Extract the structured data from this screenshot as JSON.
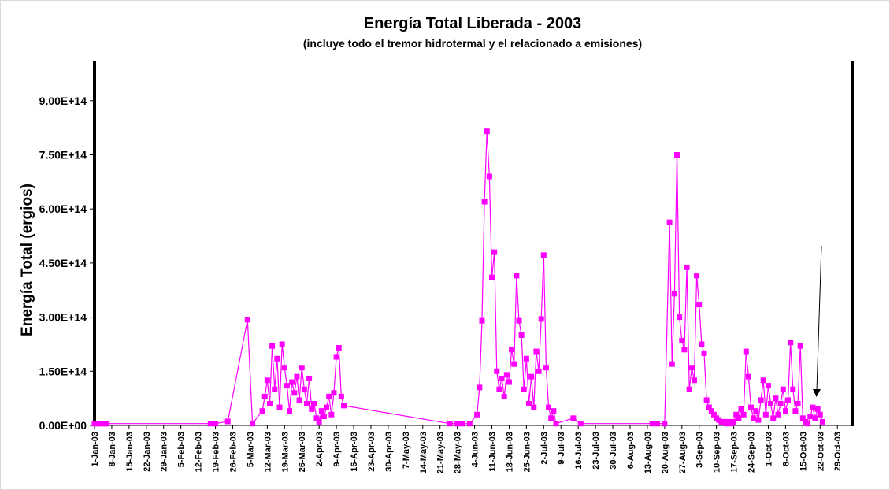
{
  "chart_data": {
    "type": "line",
    "title": "Energía Total Liberada - 2003",
    "subtitle": "(incluye todo el tremor hidrotermal y el relacionado a emisiones)",
    "y_label": "Energía Total (ergios)",
    "color": "#ff00ff",
    "x": [
      "2003-01-01",
      "2003-01-02",
      "2003-01-03",
      "2003-01-04",
      "2003-01-05",
      "2003-01-06",
      "2003-02-17",
      "2003-02-19",
      "2003-02-24",
      "2003-03-04",
      "2003-03-06",
      "2003-03-10",
      "2003-03-11",
      "2003-03-12",
      "2003-03-13",
      "2003-03-14",
      "2003-03-15",
      "2003-03-16",
      "2003-03-17",
      "2003-03-18",
      "2003-03-19",
      "2003-03-20",
      "2003-03-21",
      "2003-03-22",
      "2003-03-23",
      "2003-03-24",
      "2003-03-25",
      "2003-03-26",
      "2003-03-27",
      "2003-03-28",
      "2003-03-29",
      "2003-03-30",
      "2003-03-31",
      "2003-04-01",
      "2003-04-02",
      "2003-04-03",
      "2003-04-04",
      "2003-04-05",
      "2003-04-06",
      "2003-04-07",
      "2003-04-08",
      "2003-04-09",
      "2003-04-10",
      "2003-04-11",
      "2003-04-12",
      "2003-05-25",
      "2003-05-28",
      "2003-05-30",
      "2003-06-02",
      "2003-06-05",
      "2003-06-06",
      "2003-06-07",
      "2003-06-08",
      "2003-06-09",
      "2003-06-10",
      "2003-06-11",
      "2003-06-12",
      "2003-06-13",
      "2003-06-14",
      "2003-06-15",
      "2003-06-16",
      "2003-06-17",
      "2003-06-18",
      "2003-06-19",
      "2003-06-20",
      "2003-06-21",
      "2003-06-22",
      "2003-06-23",
      "2003-06-24",
      "2003-06-25",
      "2003-06-26",
      "2003-06-27",
      "2003-06-28",
      "2003-06-29",
      "2003-06-30",
      "2003-07-01",
      "2003-07-02",
      "2003-07-03",
      "2003-07-04",
      "2003-07-05",
      "2003-07-06",
      "2003-07-07",
      "2003-07-14",
      "2003-07-17",
      "2003-08-15",
      "2003-08-17",
      "2003-08-20",
      "2003-08-22",
      "2003-08-23",
      "2003-08-24",
      "2003-08-25",
      "2003-08-26",
      "2003-08-27",
      "2003-08-28",
      "2003-08-29",
      "2003-08-30",
      "2003-08-31",
      "2003-09-01",
      "2003-09-02",
      "2003-09-03",
      "2003-09-04",
      "2003-09-05",
      "2003-09-06",
      "2003-09-07",
      "2003-09-08",
      "2003-09-09",
      "2003-09-10",
      "2003-09-11",
      "2003-09-12",
      "2003-09-13",
      "2003-09-14",
      "2003-09-15",
      "2003-09-16",
      "2003-09-17",
      "2003-09-18",
      "2003-09-19",
      "2003-09-20",
      "2003-09-21",
      "2003-09-22",
      "2003-09-23",
      "2003-09-24",
      "2003-09-25",
      "2003-09-26",
      "2003-09-27",
      "2003-09-28",
      "2003-09-29",
      "2003-09-30",
      "2003-10-01",
      "2003-10-02",
      "2003-10-03",
      "2003-10-04",
      "2003-10-05",
      "2003-10-06",
      "2003-10-07",
      "2003-10-08",
      "2003-10-09",
      "2003-10-10",
      "2003-10-11",
      "2003-10-12",
      "2003-10-13",
      "2003-10-14",
      "2003-10-15",
      "2003-10-16",
      "2003-10-17",
      "2003-10-18",
      "2003-10-19",
      "2003-10-20",
      "2003-10-21",
      "2003-10-22",
      "2003-10-23"
    ],
    "values": [
      5000000000000.0,
      5000000000000.0,
      5000000000000.0,
      5000000000000.0,
      5000000000000.0,
      5000000000000.0,
      5000000000000.0,
      5000000000000.0,
      11000000000000.0,
      293000000000000.0,
      5000000000000.0,
      40000000000000.0,
      80000000000000.0,
      125000000000000.0,
      60000000000000.0,
      220000000000000.0,
      100000000000000.0,
      185000000000000.0,
      50000000000000.0,
      225000000000000.0,
      160000000000000.0,
      110000000000000.0,
      40000000000000.0,
      120000000000000.0,
      90000000000000.0,
      135000000000000.0,
      70000000000000.0,
      160000000000000.0,
      100000000000000.0,
      60000000000000.0,
      130000000000000.0,
      45000000000000.0,
      60000000000000.0,
      20000000000000.0,
      10000000000000.0,
      40000000000000.0,
      25000000000000.0,
      50000000000000.0,
      80000000000000.0,
      30000000000000.0,
      90000000000000.0,
      190000000000000.0,
      215000000000000.0,
      80000000000000.0,
      55000000000000.0,
      5000000000000.0,
      5000000000000.0,
      5000000000000.0,
      5000000000000.0,
      30000000000000.0,
      105000000000000.0,
      290000000000000.0,
      620000000000000.0,
      815000000000000.0,
      690000000000000.0,
      410000000000000.0,
      480000000000000.0,
      150000000000000.0,
      100000000000000.0,
      130000000000000.0,
      80000000000000.0,
      140000000000000.0,
      120000000000000.0,
      210000000000000.0,
      170000000000000.0,
      415000000000000.0,
      290000000000000.0,
      250000000000000.0,
      100000000000000.0,
      185000000000000.0,
      60000000000000.0,
      135000000000000.0,
      50000000000000.0,
      205000000000000.0,
      150000000000000.0,
      295000000000000.0,
      472000000000000.0,
      160000000000000.0,
      50000000000000.0,
      20000000000000.0,
      40000000000000.0,
      5000000000000.0,
      20000000000000.0,
      5000000000000.0,
      5000000000000.0,
      5000000000000.0,
      5000000000000.0,
      563000000000000.0,
      170000000000000.0,
      365000000000000.0,
      750000000000000.0,
      300000000000000.0,
      235000000000000.0,
      210000000000000.0,
      438000000000000.0,
      100000000000000.0,
      160000000000000.0,
      125000000000000.0,
      415000000000000.0,
      335000000000000.0,
      225000000000000.0,
      200000000000000.0,
      70000000000000.0,
      50000000000000.0,
      40000000000000.0,
      30000000000000.0,
      20000000000000.0,
      15000000000000.0,
      10000000000000.0,
      10000000000000.0,
      5000000000000.0,
      10000000000000.0,
      5000000000000.0,
      10000000000000.0,
      30000000000000.0,
      20000000000000.0,
      45000000000000.0,
      30000000000000.0,
      205000000000000.0,
      135000000000000.0,
      50000000000000.0,
      20000000000000.0,
      40000000000000.0,
      15000000000000.0,
      70000000000000.0,
      125000000000000.0,
      30000000000000.0,
      110000000000000.0,
      60000000000000.0,
      20000000000000.0,
      75000000000000.0,
      30000000000000.0,
      60000000000000.0,
      100000000000000.0,
      40000000000000.0,
      70000000000000.0,
      230000000000000.0,
      100000000000000.0,
      40000000000000.0,
      60000000000000.0,
      220000000000000.0,
      20000000000000.0,
      10000000000000.0,
      5000000000000.0,
      25000000000000.0,
      50000000000000.0,
      20000000000000.0,
      45000000000000.0,
      30000000000000.0,
      10000000000000.0
    ],
    "xlim": [
      "2003-01-01",
      "2003-11-04"
    ],
    "xticks": [
      {
        "value": "2003-01-01",
        "label": "1-Jan-03"
      },
      {
        "value": "2003-01-08",
        "label": "8-Jan-03"
      },
      {
        "value": "2003-01-15",
        "label": "15-Jan-03"
      },
      {
        "value": "2003-01-22",
        "label": "22-Jan-03"
      },
      {
        "value": "2003-01-29",
        "label": "29-Jan-03"
      },
      {
        "value": "2003-02-05",
        "label": "5-Feb-03"
      },
      {
        "value": "2003-02-12",
        "label": "12-Feb-03"
      },
      {
        "value": "2003-02-19",
        "label": "19-Feb-03"
      },
      {
        "value": "2003-02-26",
        "label": "26-Feb-03"
      },
      {
        "value": "2003-03-05",
        "label": "5-Mar-03"
      },
      {
        "value": "2003-03-12",
        "label": "12-Mar-03"
      },
      {
        "value": "2003-03-19",
        "label": "19-Mar-03"
      },
      {
        "value": "2003-03-26",
        "label": "26-Mar-03"
      },
      {
        "value": "2003-04-02",
        "label": "2-Apr-03"
      },
      {
        "value": "2003-04-09",
        "label": "9-Apr-03"
      },
      {
        "value": "2003-04-16",
        "label": "16-Apr-03"
      },
      {
        "value": "2003-04-23",
        "label": "23-Apr-03"
      },
      {
        "value": "2003-04-30",
        "label": "30-Apr-03"
      },
      {
        "value": "2003-05-07",
        "label": "7-May-03"
      },
      {
        "value": "2003-05-14",
        "label": "14-May-03"
      },
      {
        "value": "2003-05-21",
        "label": "21-May-03"
      },
      {
        "value": "2003-05-28",
        "label": "28-May-03"
      },
      {
        "value": "2003-06-04",
        "label": "4-Jun-03"
      },
      {
        "value": "2003-06-11",
        "label": "11-Jun-03"
      },
      {
        "value": "2003-06-18",
        "label": "18-Jun-03"
      },
      {
        "value": "2003-06-25",
        "label": "25-Jun-03"
      },
      {
        "value": "2003-07-02",
        "label": "2-Jul-03"
      },
      {
        "value": "2003-07-09",
        "label": "9-Jul-03"
      },
      {
        "value": "2003-07-16",
        "label": "16-Jul-03"
      },
      {
        "value": "2003-07-23",
        "label": "23-Jul-03"
      },
      {
        "value": "2003-07-30",
        "label": "30-Jul-03"
      },
      {
        "value": "2003-08-06",
        "label": "6-Aug-03"
      },
      {
        "value": "2003-08-13",
        "label": "13-Aug-03"
      },
      {
        "value": "2003-08-20",
        "label": "20-Aug-03"
      },
      {
        "value": "2003-08-27",
        "label": "27-Aug-03"
      },
      {
        "value": "2003-09-03",
        "label": "3-Sep-03"
      },
      {
        "value": "2003-09-10",
        "label": "10-Sep-03"
      },
      {
        "value": "2003-09-17",
        "label": "17-Sep-03"
      },
      {
        "value": "2003-09-24",
        "label": "24-Sep-03"
      },
      {
        "value": "2003-10-01",
        "label": "1-Oct-03"
      },
      {
        "value": "2003-10-08",
        "label": "8-Oct-03"
      },
      {
        "value": "2003-10-15",
        "label": "15-Oct-03"
      },
      {
        "value": "2003-10-22",
        "label": "22-Oct-03"
      },
      {
        "value": "2003-10-29",
        "label": "29-Oct-03"
      }
    ],
    "ylim": [
      0,
      1000000000000000.0
    ],
    "yticks": [
      {
        "value": 0,
        "label": "0.00E+00"
      },
      {
        "value": 150000000000000.0,
        "label": "1.50E+14"
      },
      {
        "value": 300000000000000.0,
        "label": "3.00E+14"
      },
      {
        "value": 450000000000000.0,
        "label": "4.50E+14"
      },
      {
        "value": 600000000000000.0,
        "label": "6.00E+14"
      },
      {
        "value": 750000000000000.0,
        "label": "7.50E+14"
      },
      {
        "value": 900000000000000.0,
        "label": "9.00E+14"
      }
    ]
  }
}
